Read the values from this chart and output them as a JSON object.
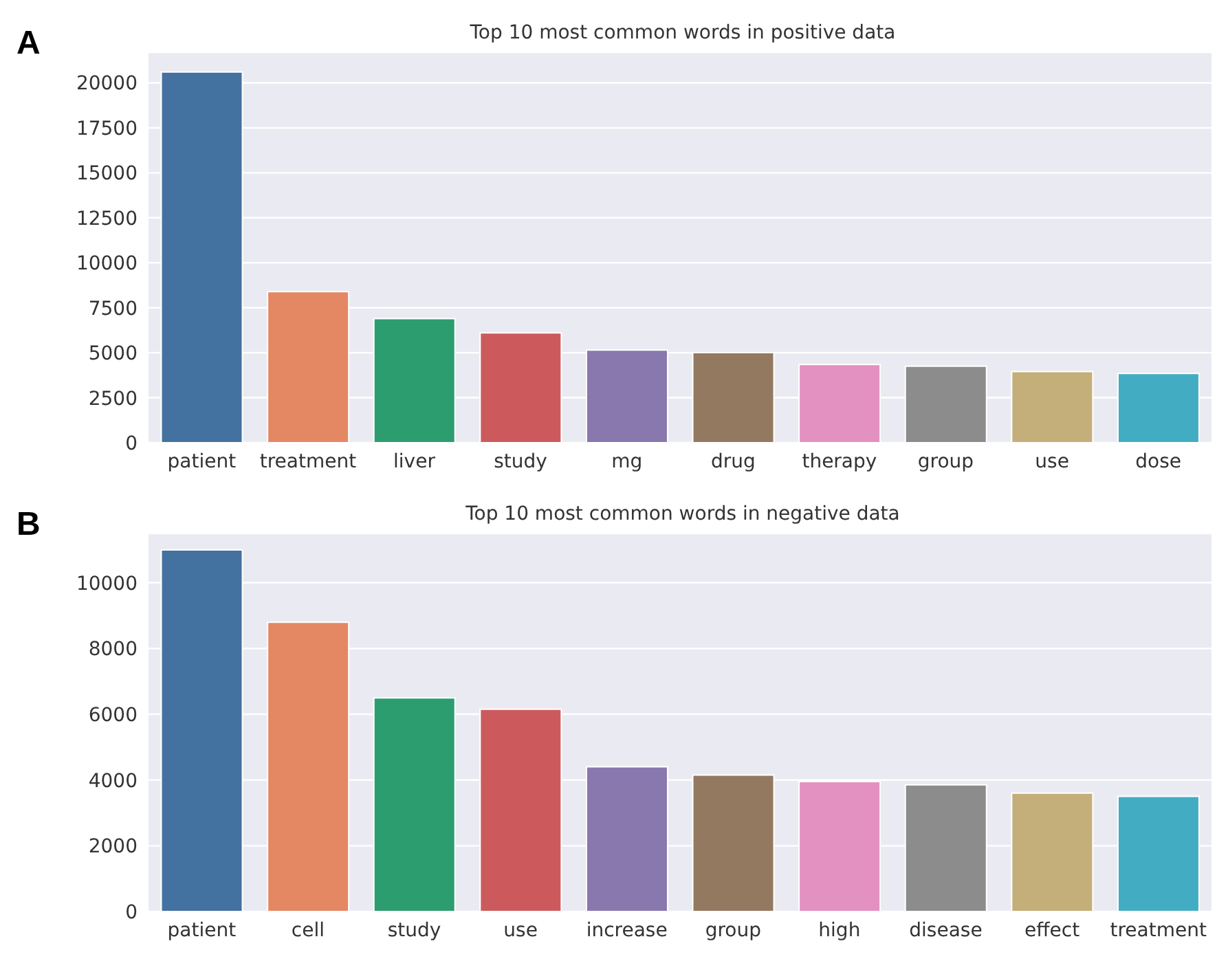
{
  "chart_data": [
    {
      "type": "bar",
      "title": "Top 10 most common words in positive data",
      "annotations": [
        "A"
      ],
      "categories": [
        "patient",
        "treatment",
        "liver",
        "study",
        "mg",
        "drug",
        "therapy",
        "group",
        "use",
        "dose"
      ],
      "values": [
        20600,
        8400,
        6900,
        6100,
        5150,
        5000,
        4350,
        4250,
        3950,
        3850
      ],
      "colors": [
        "#4472a0",
        "#e48864",
        "#2c9d6e",
        "#cc5a5d",
        "#8978ae",
        "#947961",
        "#e291c0",
        "#8c8c8c",
        "#c4ae7a",
        "#42adc2"
      ],
      "ylim": [
        0,
        21700
      ],
      "yticks": [
        0,
        2500,
        5000,
        7500,
        10000,
        12500,
        15000,
        17500,
        20000
      ],
      "grid": "y"
    },
    {
      "type": "bar",
      "title": "Top 10 most common words in negative data",
      "annotations": [
        "B"
      ],
      "categories": [
        "patient",
        "cell",
        "study",
        "use",
        "increase",
        "group",
        "high",
        "disease",
        "effect",
        "treatment"
      ],
      "values": [
        11000,
        8800,
        6500,
        6150,
        4400,
        4150,
        3950,
        3850,
        3600,
        3500
      ],
      "colors": [
        "#4472a0",
        "#e48864",
        "#2c9d6e",
        "#cc5a5d",
        "#8978ae",
        "#947961",
        "#e291c0",
        "#8c8c8c",
        "#c4ae7a",
        "#42adc2"
      ],
      "ylim": [
        0,
        11500
      ],
      "yticks": [
        0,
        2000,
        4000,
        6000,
        8000,
        10000
      ],
      "grid": "y"
    }
  ]
}
